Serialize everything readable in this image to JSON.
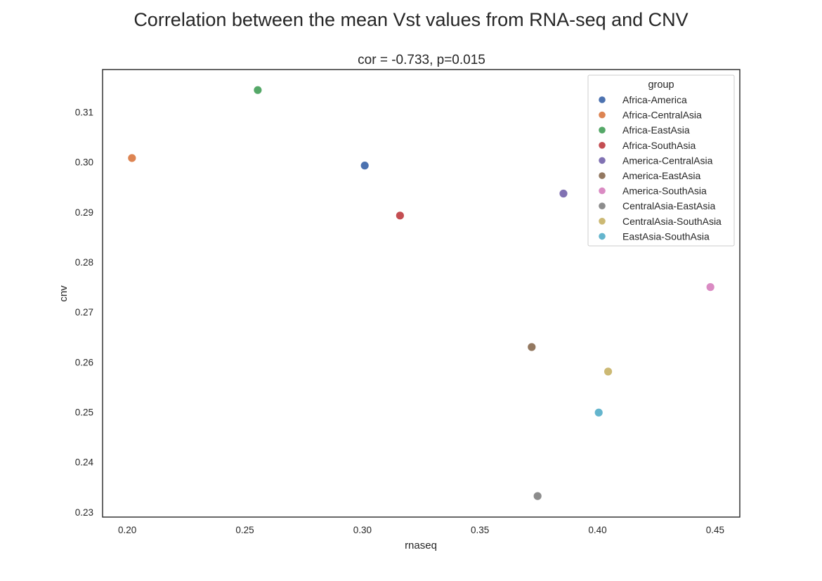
{
  "chart_data": {
    "type": "scatter",
    "suptitle": "Correlation between the mean Vst values from RNA-seq and CNV",
    "title": "cor = -0.733, p=0.015",
    "xlabel": "rnaseq",
    "ylabel": "cnv",
    "xlim": [
      0.1895,
      0.4605
    ],
    "ylim": [
      0.229,
      0.3185
    ],
    "xticks": [
      0.2,
      0.25,
      0.3,
      0.35,
      0.4,
      0.45
    ],
    "xtick_labels": [
      "0.20",
      "0.25",
      "0.30",
      "0.35",
      "0.40",
      "0.45"
    ],
    "yticks": [
      0.23,
      0.24,
      0.25,
      0.26,
      0.27,
      0.28,
      0.29,
      0.3,
      0.31
    ],
    "ytick_labels": [
      "0.23",
      "0.24",
      "0.25",
      "0.26",
      "0.27",
      "0.28",
      "0.29",
      "0.30",
      "0.31"
    ],
    "grid": false,
    "legend_title": "group",
    "legend_position": "top-right",
    "points": [
      {
        "group": "Africa-America",
        "x": 0.301,
        "y": 0.2993,
        "color": "#4c72b0"
      },
      {
        "group": "Africa-CentralAsia",
        "x": 0.202,
        "y": 0.3008,
        "color": "#dd8452"
      },
      {
        "group": "Africa-EastAsia",
        "x": 0.2555,
        "y": 0.3144,
        "color": "#55a868"
      },
      {
        "group": "Africa-SouthAsia",
        "x": 0.316,
        "y": 0.2893,
        "color": "#c44e52"
      },
      {
        "group": "America-CentralAsia",
        "x": 0.3855,
        "y": 0.2937,
        "color": "#8172b3"
      },
      {
        "group": "America-EastAsia",
        "x": 0.372,
        "y": 0.263,
        "color": "#937860"
      },
      {
        "group": "America-SouthAsia",
        "x": 0.448,
        "y": 0.275,
        "color": "#da8bc3"
      },
      {
        "group": "CentralAsia-EastAsia",
        "x": 0.3745,
        "y": 0.2332,
        "color": "#8c8c8c"
      },
      {
        "group": "CentralAsia-SouthAsia",
        "x": 0.4045,
        "y": 0.2581,
        "color": "#ccb974"
      },
      {
        "group": "EastAsia-SouthAsia",
        "x": 0.4005,
        "y": 0.2499,
        "color": "#64b5cd"
      }
    ]
  }
}
